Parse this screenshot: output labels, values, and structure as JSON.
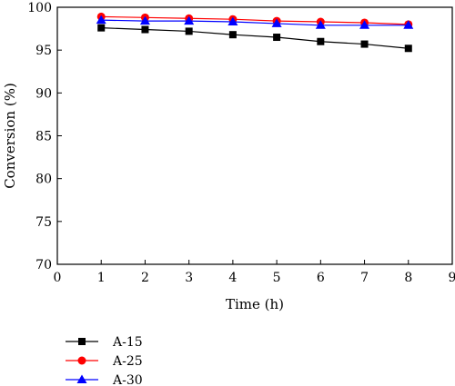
{
  "chart_data": {
    "type": "line",
    "title": "",
    "xlabel": "Time (h)",
    "ylabel": "Conversion (%)",
    "xlim": [
      0,
      9
    ],
    "ylim": [
      70,
      100
    ],
    "xticks": [
      0,
      1,
      2,
      3,
      4,
      5,
      6,
      7,
      8,
      9
    ],
    "yticks": [
      70,
      75,
      80,
      85,
      90,
      95,
      100
    ],
    "grid": false,
    "legend_position": "bottom-left, below plot",
    "x": [
      1,
      2,
      3,
      4,
      5,
      6,
      7,
      8
    ],
    "series": [
      {
        "name": "A-15",
        "color": "#000000",
        "marker": "square",
        "values": [
          97.6,
          97.4,
          97.2,
          96.8,
          96.5,
          96.0,
          95.7,
          95.2
        ]
      },
      {
        "name": "A-25",
        "color": "#ff0000",
        "marker": "circle",
        "values": [
          98.9,
          98.8,
          98.7,
          98.6,
          98.4,
          98.3,
          98.2,
          98.0
        ]
      },
      {
        "name": "A-30",
        "color": "#0000ff",
        "marker": "triangle",
        "values": [
          98.5,
          98.4,
          98.4,
          98.3,
          98.1,
          97.9,
          97.9,
          97.9
        ]
      }
    ]
  }
}
